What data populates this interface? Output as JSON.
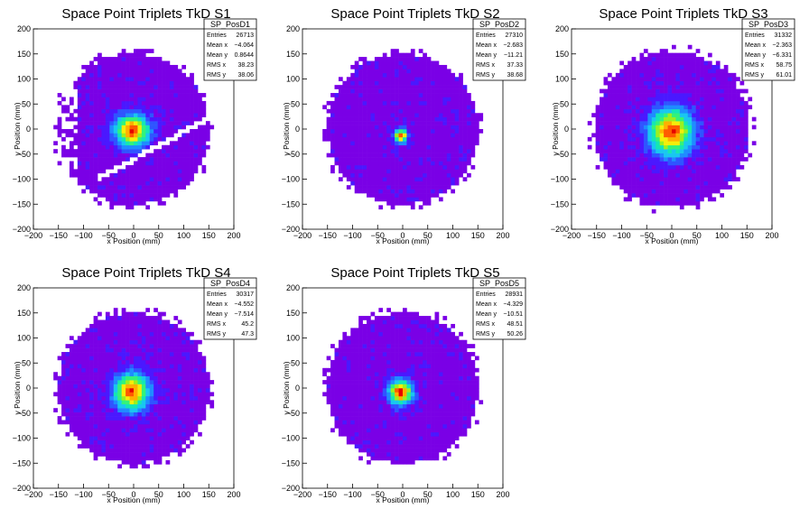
{
  "chart_data": [
    {
      "type": "heatmap",
      "id": "S1",
      "title": "Space Point Triplets TkD S1",
      "xlabel": "x Position (mm)",
      "ylabel": "y Position (mm)",
      "xlim": [
        -200,
        200
      ],
      "ylim": [
        -200,
        200
      ],
      "xticks": [
        "−200",
        "−150",
        "−100",
        "−50",
        "0",
        "50",
        "100",
        "150",
        "200"
      ],
      "yticks": [
        "−200",
        "−150",
        "−100",
        "−50",
        "0",
        "50",
        "100",
        "150",
        "200"
      ],
      "stats": {
        "name": "SP_PosD1",
        "rows": [
          {
            "label": "Entries",
            "value": "26713"
          },
          {
            "label": "Mean x",
            "value": "−4.064"
          },
          {
            "label": "Mean y",
            "value": "0.8644"
          },
          {
            "label": "RMS x",
            "value": "38.23"
          },
          {
            "label": "RMS y",
            "value": "38.06"
          }
        ]
      },
      "distribution": {
        "center": [
          -3,
          -3
        ],
        "sigma": [
          24,
          22
        ],
        "radius": 150,
        "bin_mm": 8,
        "gap_band": true
      }
    },
    {
      "type": "heatmap",
      "id": "S2",
      "title": "Space Point Triplets TkD S2",
      "xlabel": "x Position (mm)",
      "ylabel": "y Position (mm)",
      "xlim": [
        -200,
        200
      ],
      "ylim": [
        -200,
        200
      ],
      "xticks": [
        "−200",
        "−150",
        "−100",
        "−50",
        "0",
        "50",
        "100",
        "150",
        "200"
      ],
      "yticks": [
        "−200",
        "−150",
        "−100",
        "−50",
        "0",
        "50",
        "100",
        "150",
        "200"
      ],
      "stats": {
        "name": "SP_PosD2",
        "rows": [
          {
            "label": "Entries",
            "value": "27310"
          },
          {
            "label": "Mean x",
            "value": "−2.683"
          },
          {
            "label": "Mean y",
            "value": "−11.21"
          },
          {
            "label": "RMS x",
            "value": "37.33"
          },
          {
            "label": "RMS y",
            "value": "38.68"
          }
        ]
      },
      "distribution": {
        "center": [
          -3,
          -13
        ],
        "sigma": [
          9,
          9
        ],
        "radius": 150,
        "bin_mm": 8,
        "gap_band": false
      }
    },
    {
      "type": "heatmap",
      "id": "S3",
      "title": "Space Point Triplets TkD S3",
      "xlabel": "x Position (mm)",
      "ylabel": "y Position (mm)",
      "xlim": [
        -200,
        200
      ],
      "ylim": [
        -200,
        200
      ],
      "xticks": [
        "−200",
        "−150",
        "−100",
        "−50",
        "0",
        "50",
        "100",
        "150",
        "200"
      ],
      "yticks": [
        "−200",
        "−150",
        "−100",
        "−50",
        "0",
        "50",
        "100",
        "150",
        "200"
      ],
      "stats": {
        "name": "SP_PosD3",
        "rows": [
          {
            "label": "Entries",
            "value": "31332"
          },
          {
            "label": "Mean x",
            "value": "−2.363"
          },
          {
            "label": "Mean y",
            "value": "−6.331"
          },
          {
            "label": "RMS x",
            "value": "58.75"
          },
          {
            "label": "RMS y",
            "value": "61.01"
          }
        ]
      },
      "distribution": {
        "center": [
          -2,
          -5
        ],
        "sigma": [
          30,
          32
        ],
        "radius": 155,
        "bin_mm": 8,
        "gap_band": false
      }
    },
    {
      "type": "heatmap",
      "id": "S4",
      "title": "Space Point Triplets TkD S4",
      "xlabel": "x Position (mm)",
      "ylabel": "y Position (mm)",
      "xlim": [
        -200,
        200
      ],
      "ylim": [
        -200,
        200
      ],
      "xticks": [
        "−200",
        "−150",
        "−100",
        "−50",
        "0",
        "50",
        "100",
        "150",
        "200"
      ],
      "yticks": [
        "−200",
        "−150",
        "−100",
        "−50",
        "0",
        "50",
        "100",
        "150",
        "200"
      ],
      "stats": {
        "name": "SP_PosD4",
        "rows": [
          {
            "label": "Entries",
            "value": "30317"
          },
          {
            "label": "Mean x",
            "value": "−4.552"
          },
          {
            "label": "Mean y",
            "value": "−7.514"
          },
          {
            "label": "RMS x",
            "value": "45.2"
          },
          {
            "label": "RMS y",
            "value": "47.3"
          }
        ]
      },
      "distribution": {
        "center": [
          -4,
          -7
        ],
        "sigma": [
          24,
          25
        ],
        "radius": 150,
        "bin_mm": 8,
        "gap_band": false
      }
    },
    {
      "type": "heatmap",
      "id": "S5",
      "title": "Space Point Triplets TkD S5",
      "xlabel": "x Position (mm)",
      "ylabel": "y Position (mm)",
      "xlim": [
        -200,
        200
      ],
      "ylim": [
        -200,
        200
      ],
      "xticks": [
        "−200",
        "−150",
        "−100",
        "−50",
        "0",
        "50",
        "100",
        "150",
        "200"
      ],
      "yticks": [
        "−200",
        "−150",
        "−100",
        "−50",
        "0",
        "50",
        "100",
        "150",
        "200"
      ],
      "stats": {
        "name": "SP_PosD5",
        "rows": [
          {
            "label": "Entries",
            "value": "28931"
          },
          {
            "label": "Mean x",
            "value": "−4.329"
          },
          {
            "label": "Mean y",
            "value": "−10.51"
          },
          {
            "label": "RMS x",
            "value": "48.51"
          },
          {
            "label": "RMS y",
            "value": "50.26"
          }
        ]
      },
      "distribution": {
        "center": [
          -4,
          -8
        ],
        "sigma": [
          17,
          17
        ],
        "radius": 150,
        "bin_mm": 8,
        "gap_band": false
      }
    }
  ],
  "colors": {
    "palette": [
      "#7a00e6",
      "#4a18ff",
      "#2f55ff",
      "#1f8cff",
      "#19c7f0",
      "#14e6b4",
      "#33f27a",
      "#9af020",
      "#f5ee0a",
      "#ffb000",
      "#ff5a00",
      "#e60000"
    ],
    "frame": "#000000",
    "background": "#ffffff"
  }
}
